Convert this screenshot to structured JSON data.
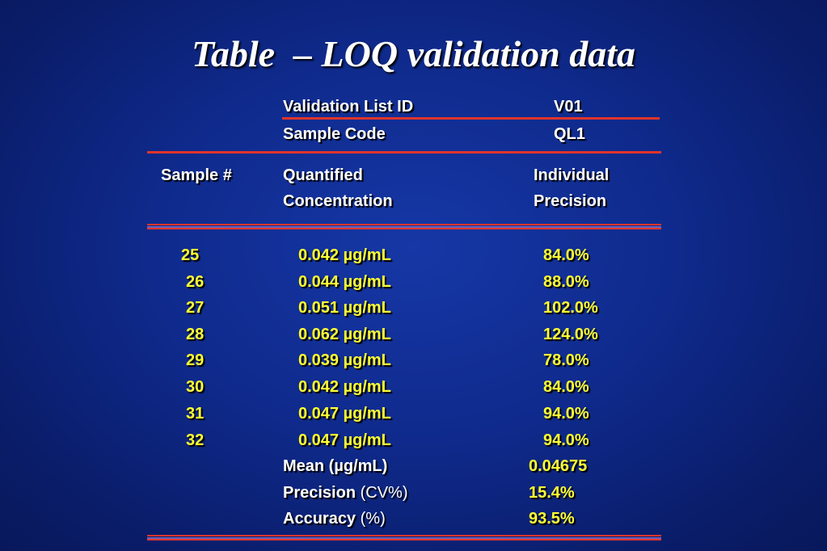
{
  "title": "Table  – LOQ validation data",
  "meta": {
    "validation_list_label": "Validation List ID",
    "validation_list_value": "V01",
    "sample_code_label": "Sample Code",
    "sample_code_value": "QL1"
  },
  "headers": {
    "sample": "Sample #",
    "quantified_1": "Quantified",
    "quantified_2": "Concentration",
    "precision_1": "Individual",
    "precision_2": "Precision"
  },
  "rows": [
    {
      "sample": "25",
      "concentration": "0.042 µg/mL",
      "precision": "84.0%"
    },
    {
      "sample": "26",
      "concentration": "0.044 µg/mL",
      "precision": "88.0%"
    },
    {
      "sample": "27",
      "concentration": "0.051 µg/mL",
      "precision": "102.0%"
    },
    {
      "sample": "28",
      "concentration": "0.062 µg/mL",
      "precision": "124.0%"
    },
    {
      "sample": "29",
      "concentration": "0.039 µg/mL",
      "precision": "78.0%"
    },
    {
      "sample": "30",
      "concentration": "0.042 µg/mL",
      "precision": "84.0%"
    },
    {
      "sample": "31",
      "concentration": "0.047 µg/mL",
      "precision": "94.0%"
    },
    {
      "sample": "32",
      "concentration": "0.047 µg/mL",
      "precision": "94.0%"
    }
  ],
  "summary": {
    "mean_label": "Mean (µg/mL)",
    "mean_value": "0.04675",
    "precision_label": "Precision",
    "precision_unit": "(CV%)",
    "precision_value": "15.4%",
    "accuracy_label": "Accuracy",
    "accuracy_unit": "(%)",
    "accuracy_value": "93.5%"
  },
  "colors": {
    "background": "#0f2a8c",
    "rule": "#e0342b",
    "values": "#ffff33",
    "labels": "#ffffff"
  }
}
